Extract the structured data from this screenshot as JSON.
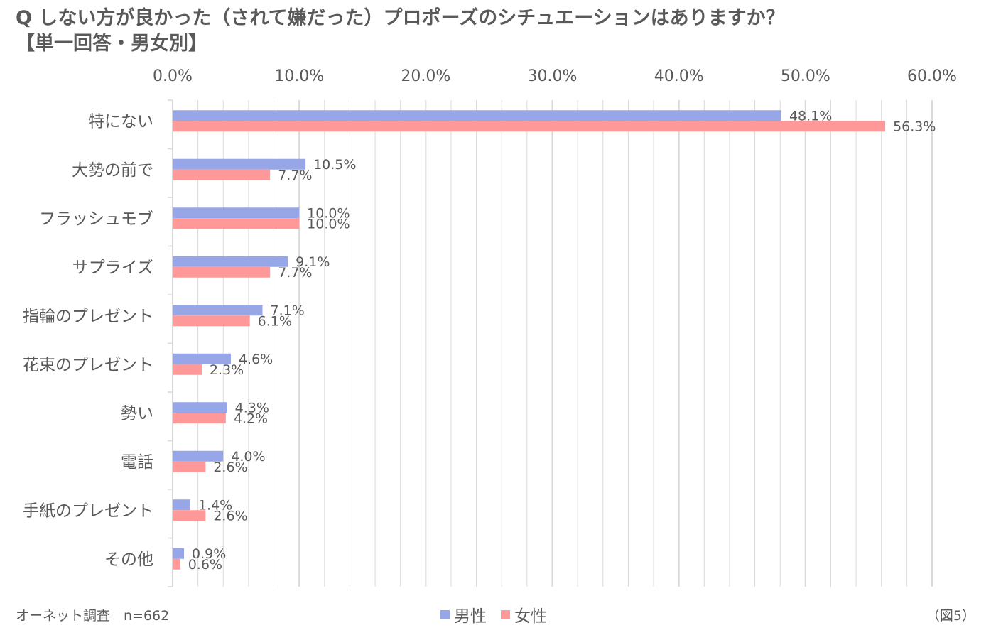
{
  "title": {
    "line1": "Q しない方が良かった（されて嫌だった）プロポーズのシチュエーションはありますか？",
    "line2": "【単一回答・男女別】"
  },
  "footer": {
    "source": "オーネット調査　n=662",
    "figure": "（図5）"
  },
  "colors": {
    "male": "#96A6E6",
    "female": "#FF9999",
    "grid": "#D9D9D9",
    "text": "#595959"
  },
  "chart_data": {
    "type": "bar",
    "orientation": "horizontal",
    "x_axis_position": "top",
    "xlim": [
      0,
      60
    ],
    "x_ticks": [
      "0.0%",
      "10.0%",
      "20.0%",
      "30.0%",
      "40.0%",
      "50.0%",
      "60.0%"
    ],
    "grid": true,
    "legend_position": "bottom",
    "categories": [
      "特にない",
      "大勢の前で",
      "フラッシュモブ",
      "サプライズ",
      "指輪のプレゼント",
      "花束のプレゼント",
      "勢い",
      "電話",
      "手紙のプレゼント",
      "その他"
    ],
    "series": [
      {
        "name": "男性",
        "values": [
          48.1,
          10.5,
          10.0,
          9.1,
          7.1,
          4.6,
          4.3,
          4.0,
          1.4,
          0.9
        ],
        "labels": [
          "48.1%",
          "10.5%",
          "10.0%",
          "9.1%",
          "7.1%",
          "4.6%",
          "4.3%",
          "4.0%",
          "1.4%",
          "0.9%"
        ]
      },
      {
        "name": "女性",
        "values": [
          56.3,
          7.7,
          10.0,
          7.7,
          6.1,
          2.3,
          4.2,
          2.6,
          2.6,
          0.6
        ],
        "labels": [
          "56.3%",
          "7.7%",
          "10.0%",
          "7.7%",
          "6.1%",
          "2.3%",
          "4.2%",
          "2.6%",
          "2.6%",
          "0.6%"
        ]
      }
    ]
  }
}
